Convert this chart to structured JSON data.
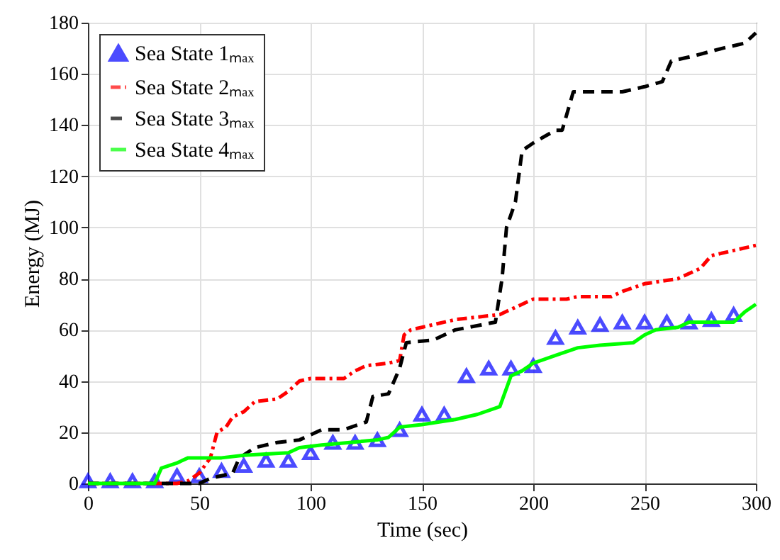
{
  "chart_data": {
    "type": "line",
    "xlabel": "Time (sec)",
    "ylabel": "Energy (MJ)",
    "xlim": [
      0,
      300
    ],
    "ylim": [
      0,
      180
    ],
    "xticks": [
      0,
      50,
      100,
      150,
      200,
      250,
      300
    ],
    "yticks": [
      0,
      20,
      40,
      60,
      80,
      100,
      120,
      140,
      160,
      180
    ],
    "grid": true,
    "legend": "top left",
    "series": [
      {
        "name": "Sea State 1ₘₐₓ",
        "type": "scatter",
        "marker": "triangle",
        "color": "#0000ff",
        "x": [
          0,
          10,
          20,
          30,
          40,
          50,
          60,
          70,
          80,
          90,
          100,
          110,
          120,
          130,
          140,
          150,
          160,
          170,
          180,
          190,
          200,
          210,
          220,
          230,
          240,
          250,
          260,
          270,
          280,
          290
        ],
        "values": [
          1,
          1,
          1,
          1,
          3,
          3,
          5,
          7,
          9,
          9,
          12,
          16,
          16,
          17,
          21,
          27,
          27,
          42,
          45,
          45,
          46,
          57,
          61,
          62,
          63,
          63,
          63,
          63,
          64,
          66
        ]
      },
      {
        "name": "Sea State 2ₘₐₓ",
        "type": "line",
        "line_style": "dashdot",
        "color": "#ff0000",
        "x": [
          0,
          40,
          45,
          50,
          55,
          58,
          62,
          65,
          70,
          75,
          85,
          90,
          95,
          100,
          115,
          120,
          125,
          135,
          140,
          142,
          145,
          155,
          165,
          185,
          195,
          200,
          215,
          220,
          235,
          240,
          250,
          265,
          275,
          280,
          290,
          300
        ],
        "values": [
          0,
          0,
          1,
          4,
          10,
          20,
          22,
          26,
          28,
          32,
          33,
          36,
          40,
          41,
          41,
          44,
          46,
          47,
          48,
          58,
          60,
          62,
          64,
          66,
          70,
          72,
          72,
          73,
          73,
          75,
          78,
          80,
          84,
          89,
          91,
          93
        ]
      },
      {
        "name": "Sea State 3ₘₐₓ",
        "type": "line",
        "line_style": "dashed",
        "color": "#000000",
        "x": [
          0,
          50,
          55,
          65,
          68,
          75,
          85,
          95,
          100,
          105,
          115,
          125,
          128,
          135,
          140,
          143,
          155,
          165,
          183,
          186,
          188,
          192,
          195,
          200,
          210,
          213,
          218,
          240,
          250,
          258,
          262,
          272,
          285,
          295,
          300
        ],
        "values": [
          0,
          0,
          2,
          4,
          10,
          14,
          16,
          17,
          19,
          21,
          21,
          24,
          34,
          35,
          45,
          55,
          56,
          60,
          63,
          80,
          100,
          110,
          130,
          133,
          138,
          138,
          153,
          153,
          155,
          157,
          165,
          167,
          170,
          172,
          176
        ]
      },
      {
        "name": "Sea State 4ₘₐₓ",
        "type": "line",
        "line_style": "solid",
        "color": "#00ff00",
        "x": [
          0,
          30,
          33,
          40,
          45,
          60,
          70,
          90,
          95,
          105,
          130,
          135,
          140,
          150,
          165,
          175,
          185,
          190,
          195,
          200,
          210,
          220,
          230,
          245,
          250,
          255,
          265,
          270,
          290,
          295,
          300
        ],
        "values": [
          0,
          0,
          6,
          8,
          10,
          10,
          11,
          12,
          14,
          15,
          17,
          18,
          22,
          23,
          25,
          27,
          30,
          42,
          44,
          47,
          50,
          53,
          54,
          55,
          58,
          60,
          61,
          63,
          63,
          67,
          70
        ]
      }
    ]
  }
}
